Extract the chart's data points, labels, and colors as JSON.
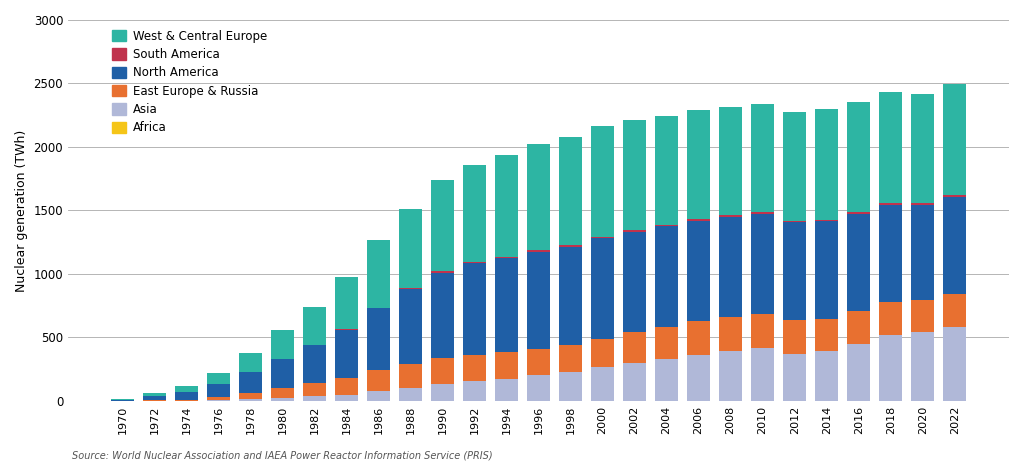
{
  "years": [
    1970,
    1972,
    1974,
    1976,
    1978,
    1980,
    1982,
    1984,
    1986,
    1988,
    1990,
    1992,
    1994,
    1996,
    1998,
    2000,
    2002,
    2004,
    2006,
    2008,
    2010,
    2012,
    2014,
    2016,
    2018,
    2020,
    2022
  ],
  "Africa": [
    0,
    0,
    0,
    0,
    0,
    0,
    0,
    0,
    0,
    0,
    0,
    0,
    0,
    0,
    0,
    0,
    0,
    0,
    0,
    0,
    0,
    0,
    0,
    0,
    0,
    0,
    0
  ],
  "Asia": [
    0,
    0,
    0,
    5,
    15,
    25,
    35,
    50,
    75,
    100,
    130,
    155,
    175,
    200,
    225,
    265,
    300,
    330,
    365,
    390,
    420,
    370,
    390,
    450,
    520,
    540,
    580
  ],
  "East_Europe_Russia": [
    0,
    5,
    10,
    25,
    50,
    75,
    105,
    130,
    165,
    190,
    210,
    210,
    210,
    210,
    215,
    225,
    240,
    255,
    265,
    270,
    265,
    265,
    255,
    255,
    255,
    255,
    265
  ],
  "North_America": [
    5,
    30,
    60,
    100,
    160,
    230,
    300,
    380,
    490,
    590,
    670,
    720,
    740,
    765,
    775,
    790,
    790,
    790,
    790,
    790,
    790,
    770,
    770,
    770,
    770,
    750,
    760
  ],
  "South_America": [
    0,
    0,
    0,
    0,
    0,
    0,
    0,
    5,
    5,
    8,
    10,
    10,
    10,
    12,
    12,
    12,
    12,
    12,
    12,
    12,
    12,
    12,
    12,
    12,
    15,
    15,
    20
  ],
  "West_Central_Europe": [
    10,
    25,
    50,
    90,
    150,
    225,
    300,
    410,
    530,
    620,
    720,
    760,
    800,
    840,
    855,
    870,
    870,
    860,
    860,
    855,
    855,
    855,
    870,
    870,
    870,
    860,
    870
  ],
  "colors": {
    "Africa": "#f5c518",
    "Asia": "#b0b8d8",
    "East_Europe_Russia": "#e87030",
    "North_America": "#1f5fa6",
    "South_America": "#c0334d",
    "West_Central_Europe": "#2db5a3"
  },
  "legend_labels": {
    "West_Central_Europe": "West & Central Europe",
    "South_America": "South America",
    "North_America": "North America",
    "East_Europe_Russia": "East Europe & Russia",
    "Asia": "Asia",
    "Africa": "Africa"
  },
  "ylabel": "Nuclear generation (TWh)",
  "ylim": [
    0,
    3000
  ],
  "yticks": [
    0,
    500,
    1000,
    1500,
    2000,
    2500,
    3000
  ],
  "source_text": "Source: World Nuclear Association and IAEA Power Reactor Information Service (PRIS)",
  "background_color": "#ffffff",
  "grid_color": "#aaaaaa"
}
